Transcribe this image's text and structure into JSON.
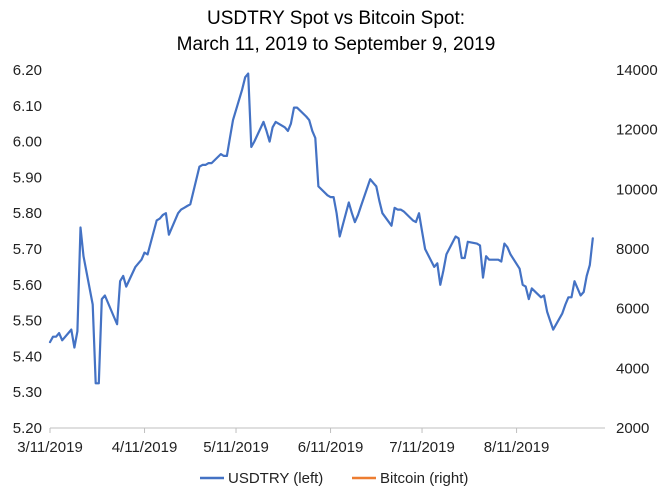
{
  "chart_data": {
    "type": "line",
    "title_line1": "USDTRY Spot vs Bitcoin Spot:",
    "title_line2": "March  11, 2019 to September 9, 2019",
    "xlabel": "",
    "ylabel_left": "",
    "ylabel_right": "",
    "x_tick_labels": [
      "3/11/2019",
      "4/11/2019",
      "5/11/2019",
      "6/11/2019",
      "7/11/2019",
      "8/11/2019"
    ],
    "x_tick_dates": [
      "2019-03-11",
      "2019-04-11",
      "2019-05-11",
      "2019-06-11",
      "2019-07-11",
      "2019-08-11"
    ],
    "xlim": [
      "2019-03-11",
      "2019-09-09"
    ],
    "left_axis": {
      "min": 5.2,
      "max": 6.2,
      "ticks": [
        "5.20",
        "5.30",
        "5.40",
        "5.50",
        "5.60",
        "5.70",
        "5.80",
        "5.90",
        "6.00",
        "6.10",
        "6.20"
      ]
    },
    "right_axis": {
      "min": 2000,
      "max": 14000,
      "ticks": [
        "2000",
        "4000",
        "6000",
        "8000",
        "10000",
        "12000",
        "14000"
      ]
    },
    "grid": false,
    "legend_position": "bottom",
    "series": [
      {
        "name": "USDTRY (left)",
        "axis": "left",
        "color": "#4472C4",
        "points": [
          [
            "2019-03-11",
            5.44
          ],
          [
            "2019-03-12",
            5.455
          ],
          [
            "2019-03-13",
            5.455
          ],
          [
            "2019-03-14",
            5.465
          ],
          [
            "2019-03-15",
            5.445
          ],
          [
            "2019-03-18",
            5.475
          ],
          [
            "2019-03-19",
            5.425
          ],
          [
            "2019-03-20",
            5.47
          ],
          [
            "2019-03-21",
            5.76
          ],
          [
            "2019-03-22",
            5.68
          ],
          [
            "2019-03-25",
            5.545
          ],
          [
            "2019-03-26",
            5.325
          ],
          [
            "2019-03-27",
            5.325
          ],
          [
            "2019-03-28",
            5.56
          ],
          [
            "2019-03-29",
            5.57
          ],
          [
            "2019-04-01",
            5.51
          ],
          [
            "2019-04-02",
            5.49
          ],
          [
            "2019-04-03",
            5.61
          ],
          [
            "2019-04-04",
            5.625
          ],
          [
            "2019-04-05",
            5.595
          ],
          [
            "2019-04-08",
            5.65
          ],
          [
            "2019-04-09",
            5.66
          ],
          [
            "2019-04-10",
            5.67
          ],
          [
            "2019-04-11",
            5.69
          ],
          [
            "2019-04-12",
            5.685
          ],
          [
            "2019-04-15",
            5.78
          ],
          [
            "2019-04-16",
            5.785
          ],
          [
            "2019-04-17",
            5.795
          ],
          [
            "2019-04-18",
            5.8
          ],
          [
            "2019-04-19",
            5.74
          ],
          [
            "2019-04-22",
            5.8
          ],
          [
            "2019-04-23",
            5.81
          ],
          [
            "2019-04-24",
            5.815
          ],
          [
            "2019-04-25",
            5.82
          ],
          [
            "2019-04-26",
            5.825
          ],
          [
            "2019-04-29",
            5.93
          ],
          [
            "2019-04-30",
            5.935
          ],
          [
            "2019-05-01",
            5.935
          ],
          [
            "2019-05-02",
            5.94
          ],
          [
            "2019-05-03",
            5.94
          ],
          [
            "2019-05-06",
            5.965
          ],
          [
            "2019-05-07",
            5.96
          ],
          [
            "2019-05-08",
            5.96
          ],
          [
            "2019-05-09",
            6.01
          ],
          [
            "2019-05-10",
            6.06
          ],
          [
            "2019-05-13",
            6.145
          ],
          [
            "2019-05-14",
            6.18
          ],
          [
            "2019-05-15",
            6.19
          ],
          [
            "2019-05-16",
            5.985
          ],
          [
            "2019-05-17",
            6.0
          ],
          [
            "2019-05-20",
            6.055
          ],
          [
            "2019-05-21",
            6.03
          ],
          [
            "2019-05-22",
            6.0
          ],
          [
            "2019-05-23",
            6.04
          ],
          [
            "2019-05-24",
            6.055
          ],
          [
            "2019-05-27",
            6.04
          ],
          [
            "2019-05-28",
            6.03
          ],
          [
            "2019-05-29",
            6.05
          ],
          [
            "2019-05-30",
            6.095
          ],
          [
            "2019-05-31",
            6.095
          ],
          [
            "2019-06-03",
            6.07
          ],
          [
            "2019-06-04",
            6.06
          ],
          [
            "2019-06-05",
            6.03
          ],
          [
            "2019-06-06",
            6.01
          ],
          [
            "2019-06-07",
            5.875
          ],
          [
            "2019-06-10",
            5.85
          ],
          [
            "2019-06-11",
            5.845
          ],
          [
            "2019-06-12",
            5.845
          ],
          [
            "2019-06-13",
            5.8
          ],
          [
            "2019-06-14",
            5.735
          ],
          [
            "2019-06-17",
            5.83
          ],
          [
            "2019-06-18",
            5.8
          ],
          [
            "2019-06-19",
            5.775
          ],
          [
            "2019-06-20",
            5.795
          ],
          [
            "2019-06-21",
            5.82
          ],
          [
            "2019-06-24",
            5.895
          ],
          [
            "2019-06-25",
            5.885
          ],
          [
            "2019-06-26",
            5.875
          ],
          [
            "2019-06-27",
            5.835
          ],
          [
            "2019-06-28",
            5.8
          ],
          [
            "2019-07-01",
            5.765
          ],
          [
            "2019-07-02",
            5.815
          ],
          [
            "2019-07-03",
            5.81
          ],
          [
            "2019-07-04",
            5.81
          ],
          [
            "2019-07-05",
            5.805
          ],
          [
            "2019-07-08",
            5.78
          ],
          [
            "2019-07-09",
            5.775
          ],
          [
            "2019-07-10",
            5.8
          ],
          [
            "2019-07-11",
            5.75
          ],
          [
            "2019-07-12",
            5.7
          ],
          [
            "2019-07-15",
            5.65
          ],
          [
            "2019-07-16",
            5.66
          ],
          [
            "2019-07-17",
            5.6
          ],
          [
            "2019-07-18",
            5.64
          ],
          [
            "2019-07-19",
            5.685
          ],
          [
            "2019-07-22",
            5.735
          ],
          [
            "2019-07-23",
            5.73
          ],
          [
            "2019-07-24",
            5.675
          ],
          [
            "2019-07-25",
            5.675
          ],
          [
            "2019-07-26",
            5.72
          ],
          [
            "2019-07-29",
            5.715
          ],
          [
            "2019-07-30",
            5.71
          ],
          [
            "2019-07-31",
            5.62
          ],
          [
            "2019-08-01",
            5.68
          ],
          [
            "2019-08-02",
            5.67
          ],
          [
            "2019-08-05",
            5.67
          ],
          [
            "2019-08-06",
            5.665
          ],
          [
            "2019-08-07",
            5.715
          ],
          [
            "2019-08-08",
            5.705
          ],
          [
            "2019-08-09",
            5.685
          ],
          [
            "2019-08-12",
            5.645
          ],
          [
            "2019-08-13",
            5.6
          ],
          [
            "2019-08-14",
            5.595
          ],
          [
            "2019-08-15",
            5.56
          ],
          [
            "2019-08-16",
            5.59
          ],
          [
            "2019-08-19",
            5.565
          ],
          [
            "2019-08-20",
            5.57
          ],
          [
            "2019-08-21",
            5.525
          ],
          [
            "2019-08-22",
            5.5
          ],
          [
            "2019-08-23",
            5.475
          ],
          [
            "2019-08-26",
            5.52
          ],
          [
            "2019-08-27",
            5.545
          ],
          [
            "2019-08-28",
            5.565
          ],
          [
            "2019-08-29",
            5.565
          ],
          [
            "2019-08-30",
            5.61
          ],
          [
            "2019-09-01",
            5.57
          ],
          [
            "2019-09-02",
            5.58
          ],
          [
            "2019-09-03",
            5.625
          ],
          [
            "2019-09-04",
            5.655
          ],
          [
            "2019-09-05",
            5.73
          ]
        ]
      },
      {
        "name": "Bitcoin (right)",
        "axis": "right",
        "color": "#ED7D31",
        "points": []
      }
    ]
  }
}
